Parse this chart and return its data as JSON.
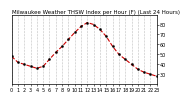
{
  "title": "Milwaukee Weather THSW Index per Hour (F) (Last 24 Hours)",
  "x_values": [
    0,
    1,
    2,
    3,
    4,
    5,
    6,
    7,
    8,
    9,
    10,
    11,
    12,
    13,
    14,
    15,
    16,
    17,
    18,
    19,
    20,
    21,
    22,
    23
  ],
  "y_values": [
    48,
    42,
    40,
    38,
    36,
    38,
    45,
    52,
    58,
    65,
    72,
    78,
    82,
    80,
    75,
    68,
    58,
    50,
    45,
    40,
    35,
    32,
    30,
    28
  ],
  "ylim": [
    20,
    90
  ],
  "xlim": [
    0,
    23
  ],
  "yticks": [
    30,
    40,
    50,
    60,
    70,
    80
  ],
  "ytick_labels": [
    "30",
    "40",
    "50",
    "60",
    "70",
    "80"
  ],
  "line_color": "#cc0000",
  "marker": "o",
  "marker_color": "#000000",
  "marker_size": 1.5,
  "line_style": "--",
  "line_width": 0.8,
  "bg_color": "#ffffff",
  "grid_color": "#888888",
  "grid_linestyle": ":",
  "title_fontsize": 4,
  "tick_fontsize": 3.5,
  "right_axis": true
}
